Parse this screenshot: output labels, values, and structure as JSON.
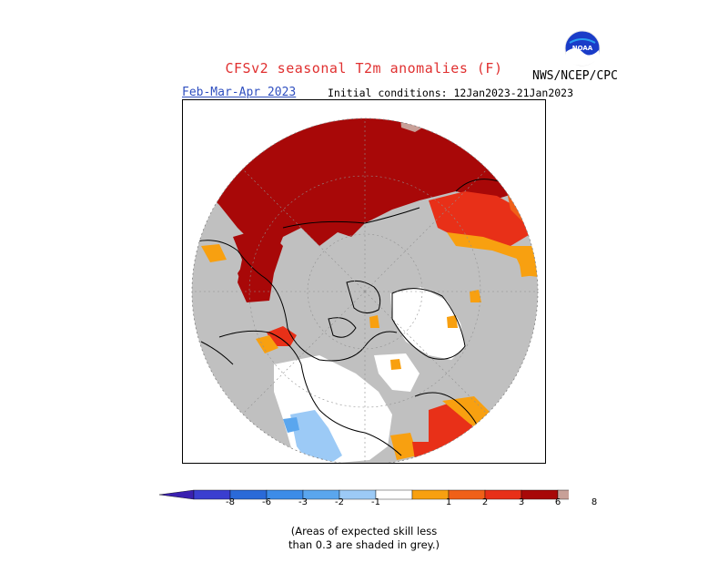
{
  "header": {
    "title": "CFSv2 seasonal T2m anomalies (F)",
    "period": "Feb-Mar-Apr 2023",
    "initial_conditions": "Initial conditions: 12Jan2023-21Jan2023",
    "agency": "NWS/NCEP/CPC",
    "logo_text": "NOAA"
  },
  "map": {
    "projection": "polar-stereographic-north",
    "grey_color": "#c0c0c0",
    "land_outline_color": "#000000"
  },
  "legend": {
    "bins": [
      {
        "color": "#3a20b0"
      },
      {
        "color": "#3a3ed0"
      },
      {
        "color": "#2a6ad8"
      },
      {
        "color": "#3c8ce8"
      },
      {
        "color": "#5aa6ee"
      },
      {
        "color": "#9ccaf6"
      },
      {
        "color": "#ffffff"
      },
      {
        "color": "#f8a010"
      },
      {
        "color": "#f06018"
      },
      {
        "color": "#e83018"
      },
      {
        "color": "#a80808"
      },
      {
        "color": "#c8a098"
      },
      {
        "color": "#8a5038"
      }
    ],
    "ticks": [
      "-8",
      "-6",
      "-3",
      "-2",
      "-1",
      "1",
      "2",
      "3",
      "6",
      "8"
    ]
  },
  "note": {
    "line1": "(Areas of expected skill less",
    "line2": "than 0.3 are shaded in grey.)"
  }
}
